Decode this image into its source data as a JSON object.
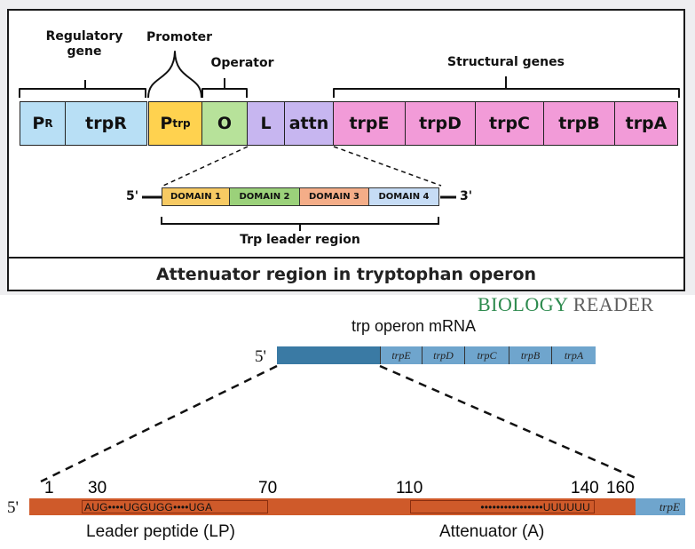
{
  "top": {
    "labels": {
      "regulatory": "Regulatory\ngene",
      "promoter": "Promoter",
      "operator": "Operator",
      "structural": "Structural genes",
      "leader_region": "Trp leader region"
    },
    "boxes": [
      {
        "main": "P",
        "sub": "R",
        "color": "#b8dff5"
      },
      {
        "main": "trpR",
        "sub": "",
        "color": "#b8dff5"
      },
      {
        "main": "P",
        "sub": "trp",
        "color": "#ffd24f"
      },
      {
        "main": "O",
        "sub": "",
        "color": "#b7e29a"
      },
      {
        "main": "L",
        "sub": "",
        "color": "#c7b6f0"
      },
      {
        "main": "attn",
        "sub": "",
        "color": "#c7b6f0"
      },
      {
        "main": "trpE",
        "sub": "",
        "color": "#f29bd8"
      },
      {
        "main": "trpD",
        "sub": "",
        "color": "#f29bd8"
      },
      {
        "main": "trpC",
        "sub": "",
        "color": "#f29bd8"
      },
      {
        "main": "trpB",
        "sub": "",
        "color": "#f29bd8"
      },
      {
        "main": "trpA",
        "sub": "",
        "color": "#f29bd8"
      }
    ],
    "leader": {
      "five": "5'",
      "three": "3'",
      "domains": [
        {
          "label": "DOMAIN 1",
          "color": "#f7ca63"
        },
        {
          "label": "DOMAIN 2",
          "color": "#9bd17a"
        },
        {
          "label": "DOMAIN 3",
          "color": "#f4ad88"
        },
        {
          "label": "DOMAIN 4",
          "color": "#c6dcf5"
        }
      ]
    },
    "caption": "Attenuator region in tryptophan operon",
    "watermark": {
      "part1": "BIOLOGY",
      "part2": "READER"
    }
  },
  "bottom": {
    "mrna_title": "trp operon mRNA",
    "mrna_five": "5'",
    "mrna_genes": [
      "trpE",
      "trpD",
      "trpC",
      "trpB",
      "trpA"
    ],
    "lower_five": "5'",
    "positions": [
      "1",
      "30",
      "70",
      "110",
      "140",
      "160"
    ],
    "leader_seq": "AUG••••UGGUGG••••UGA",
    "attn_seq": "••••••••••••••••UUUUUU",
    "end_gene": "trpE",
    "leader_label": "Leader peptide (LP)",
    "attenuator_label": "Attenuator (A)"
  },
  "colors": {
    "mrna_dark": "#3a7aa4",
    "mrna_light": "#6fa5cd",
    "rna_orange": "#cf5a2a",
    "watermark_green": "#2d8a4e",
    "watermark_gray": "#5d5d5d"
  }
}
